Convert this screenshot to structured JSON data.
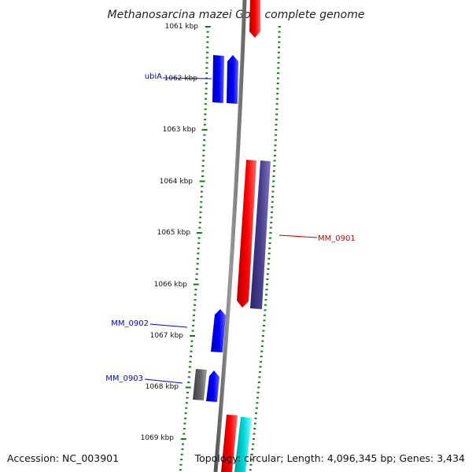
{
  "title": "Methanosarcina mazei Go1, complete genome",
  "ticks": [
    {
      "label": "1061 kbp",
      "kbp": 1061
    },
    {
      "label": "1062 kbp",
      "kbp": 1062
    },
    {
      "label": "1063 kbp",
      "kbp": 1063
    },
    {
      "label": "1064 kbp",
      "kbp": 1064
    },
    {
      "label": "1065 kbp",
      "kbp": 1065
    },
    {
      "label": "1066 kbp",
      "kbp": 1066
    },
    {
      "label": "1067 kbp",
      "kbp": 1067
    },
    {
      "label": "1068 kbp",
      "kbp": 1068
    },
    {
      "label": "1069 kbp",
      "kbp": 1069
    }
  ],
  "gene_labels": [
    {
      "text": "ubiA",
      "color": "#0000cc"
    },
    {
      "text": "MM_0901",
      "color": "#cc0000"
    },
    {
      "text": "MM_0902",
      "color": "#0000cc"
    },
    {
      "text": "MM_0903",
      "color": "#0000cc"
    }
  ],
  "colors": {
    "backbone": "#808080",
    "tick": "#1a7a1a",
    "forward_gene": "#0000ee",
    "reverse_gene": "#ee0000",
    "other_gene": "#4a3f8c",
    "rna_gene": "#646464",
    "cyan_gene": "#00cccc"
  },
  "footer": {
    "accession": "Accession: NC_003901",
    "summary": "Topology: circular; Length: 4,096,345 bp; Genes: 3,434"
  }
}
